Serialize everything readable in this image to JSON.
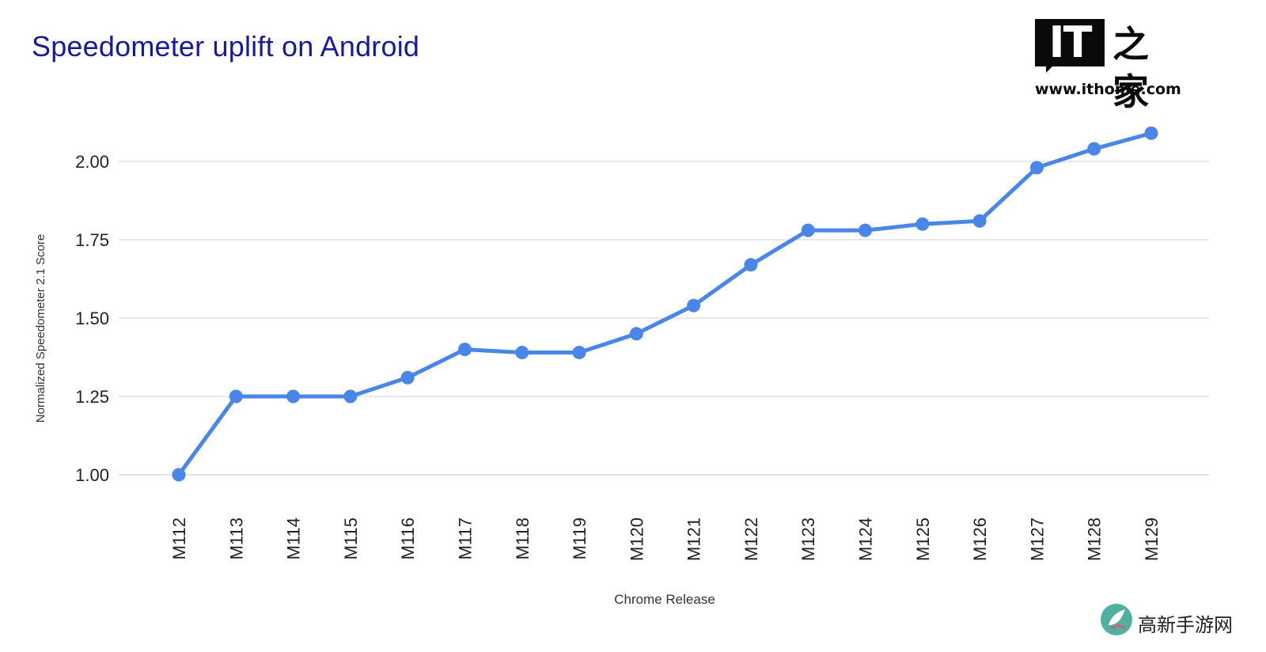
{
  "page": {
    "title": "Speedometer uplift on Android"
  },
  "logo": {
    "mark": "IT",
    "chinese": "之家",
    "url": "www.ithome.com"
  },
  "watermark": {
    "text": "高新手游网",
    "icon": "leaf-swirl-icon"
  },
  "colors": {
    "title": "#1a1a99",
    "series": "#4a86e8",
    "grid": "#d9d9d9"
  },
  "chart_data": {
    "type": "line",
    "title": "Speedometer uplift on Android",
    "xlabel": "Chrome Release",
    "ylabel": "Normalized Speedometer 2.1 Score",
    "ylim": [
      0.9,
      2.15
    ],
    "yticks": [
      "1.00",
      "1.25",
      "1.50",
      "1.75",
      "2.00"
    ],
    "grid": true,
    "legend": "none",
    "categories": [
      "M112",
      "M113",
      "M114",
      "M115",
      "M116",
      "M117",
      "M118",
      "M119",
      "M120",
      "M121",
      "M122",
      "M123",
      "M124",
      "M125",
      "M126",
      "M127",
      "M128",
      "M129"
    ],
    "series": [
      {
        "values": [
          1.0,
          1.25,
          1.25,
          1.25,
          1.31,
          1.4,
          1.39,
          1.39,
          1.45,
          1.54,
          1.67,
          1.78,
          1.78,
          1.8,
          1.81,
          1.98,
          2.04,
          2.09
        ]
      }
    ]
  }
}
